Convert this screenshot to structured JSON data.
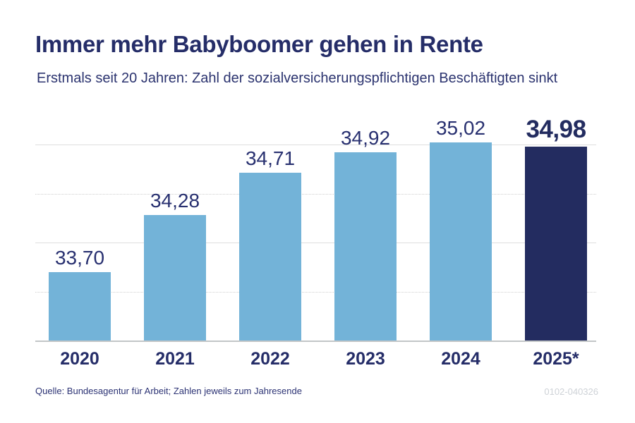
{
  "header": {
    "title": "Immer mehr Babyboomer gehen in Rente",
    "subtitle": "Erstmals seit 20 Jahren: Zahl der sozialversicherungspflichtigen Beschäftigten sinkt"
  },
  "chart_data": {
    "type": "bar",
    "title": "Immer mehr Babyboomer gehen in Rente",
    "subtitle": "Erstmals seit 20 Jahren: Zahl der sozialversicherungspflichtigen Beschäftigten sinkt",
    "categories": [
      "2020",
      "2021",
      "2022",
      "2023",
      "2024",
      "2025*"
    ],
    "values": [
      33.7,
      34.28,
      34.71,
      34.92,
      35.02,
      34.98
    ],
    "value_labels": [
      "33,70",
      "34,28",
      "34,71",
      "34,92",
      "35,02",
      "34,98"
    ],
    "highlight_index": 5,
    "xlabel": "",
    "ylabel": "",
    "ylim": [
      33.0,
      35.25
    ],
    "grid": true,
    "legend": "none",
    "gridlines": [
      {
        "value": 35.0,
        "style": "solid"
      },
      {
        "value": 34.5,
        "style": "dotted"
      },
      {
        "value": 34.0,
        "style": "solid"
      },
      {
        "value": 33.5,
        "style": "dotted"
      }
    ],
    "colors": {
      "bar": "#73b3d8",
      "highlight_bar": "#232c60",
      "text_navy": "#252d68",
      "gridline": "#dedede",
      "baseline": "#c2c5c7"
    }
  },
  "footer": {
    "source": "Quelle: Bundesagentur für Arbeit; Zahlen jeweils zum Jahresende",
    "id": "0102-040326"
  }
}
